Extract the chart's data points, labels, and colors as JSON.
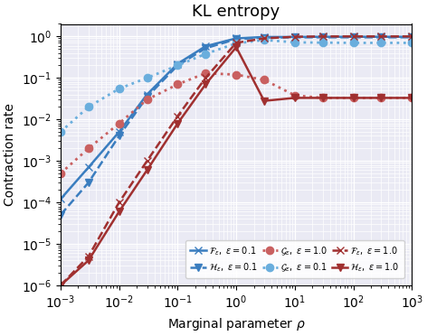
{
  "title": "KL entropy",
  "xlabel": "Marginal parameter $\\rho$",
  "ylabel": "Contraction rate",
  "xlim": [
    0.001,
    1000.0
  ],
  "ylim": [
    1e-06,
    2.0
  ],
  "background_color": "#eaeaf4",
  "grid_color": "white",
  "series": [
    {
      "label": "$\\mathcal{F}_{\\varepsilon},\\ \\varepsilon = 0.1$",
      "color": "#3a7dbf",
      "linestyle": "-",
      "marker": "x",
      "markersize": 6,
      "linewidth": 1.8,
      "x": [
        0.001,
        0.003,
        0.01,
        0.03,
        0.1,
        0.3,
        1.0,
        3.0,
        10.0,
        30.0,
        100.0,
        300.0,
        1000.0
      ],
      "y": [
        0.00012,
        0.0007,
        0.005,
        0.04,
        0.22,
        0.58,
        0.9,
        0.97,
        0.97,
        0.98,
        0.98,
        0.98,
        0.98
      ]
    },
    {
      "label": "$\\mathcal{H}_{\\varepsilon},\\ \\varepsilon = 0.1$",
      "color": "#3a7dbf",
      "linestyle": "--",
      "marker": "v",
      "markersize": 6,
      "linewidth": 1.8,
      "x": [
        0.001,
        0.003,
        0.01,
        0.03,
        0.1,
        0.3,
        1.0,
        3.0,
        10.0,
        30.0,
        100.0,
        300.0,
        1000.0
      ],
      "y": [
        5e-05,
        0.0003,
        0.004,
        0.035,
        0.2,
        0.52,
        0.86,
        0.94,
        0.95,
        0.95,
        0.95,
        0.95,
        0.95
      ]
    },
    {
      "label": "$\\mathcal{G}_{\\varepsilon},\\ \\varepsilon = 0.1$",
      "color": "#6aaedd",
      "linestyle": ":",
      "marker": "o",
      "markersize": 6,
      "linewidth": 2.0,
      "x": [
        0.001,
        0.003,
        0.01,
        0.03,
        0.1,
        0.3,
        1.0,
        3.0,
        10.0,
        30.0,
        100.0,
        300.0,
        1000.0
      ],
      "y": [
        0.005,
        0.02,
        0.055,
        0.1,
        0.2,
        0.38,
        0.68,
        0.82,
        0.72,
        0.71,
        0.7,
        0.7,
        0.7
      ]
    },
    {
      "label": "$\\mathcal{G}_{\\varepsilon},\\ \\varepsilon = 1.0$",
      "color": "#c96060",
      "linestyle": ":",
      "marker": "o",
      "markersize": 6,
      "linewidth": 2.0,
      "x": [
        0.001,
        0.003,
        0.01,
        0.03,
        0.1,
        0.3,
        1.0,
        3.0,
        10.0,
        30.0,
        100.0,
        300.0,
        1000.0
      ],
      "y": [
        0.0005,
        0.002,
        0.008,
        0.03,
        0.07,
        0.13,
        0.12,
        0.09,
        0.038,
        0.033,
        0.033,
        0.033,
        0.033
      ]
    },
    {
      "label": "$\\mathcal{F}_{\\varepsilon},\\ \\varepsilon = 1.0$",
      "color": "#a03030",
      "linestyle": "--",
      "marker": "x",
      "markersize": 6,
      "linewidth": 1.8,
      "x": [
        0.001,
        0.003,
        0.01,
        0.03,
        0.1,
        0.3,
        1.0,
        3.0,
        10.0,
        30.0,
        100.0,
        300.0,
        1000.0
      ],
      "y": [
        1e-06,
        5e-06,
        0.0001,
        0.001,
        0.012,
        0.1,
        0.7,
        0.9,
        0.98,
        1.0,
        1.0,
        1.0,
        1.0
      ]
    },
    {
      "label": "$\\mathcal{H}_{\\varepsilon},\\ \\varepsilon = 1.0$",
      "color": "#a03030",
      "linestyle": "-",
      "marker": "v",
      "markersize": 6,
      "linewidth": 1.8,
      "x": [
        0.001,
        0.003,
        0.01,
        0.03,
        0.1,
        0.3,
        1.0,
        3.0,
        10.0,
        30.0,
        100.0,
        300.0,
        1000.0
      ],
      "y": [
        1e-06,
        4e-06,
        6e-05,
        0.0006,
        0.008,
        0.07,
        0.55,
        0.028,
        0.033,
        0.033,
        0.033,
        0.033,
        0.033
      ]
    }
  ],
  "legend_order": [
    0,
    1,
    3,
    2,
    4,
    5
  ]
}
